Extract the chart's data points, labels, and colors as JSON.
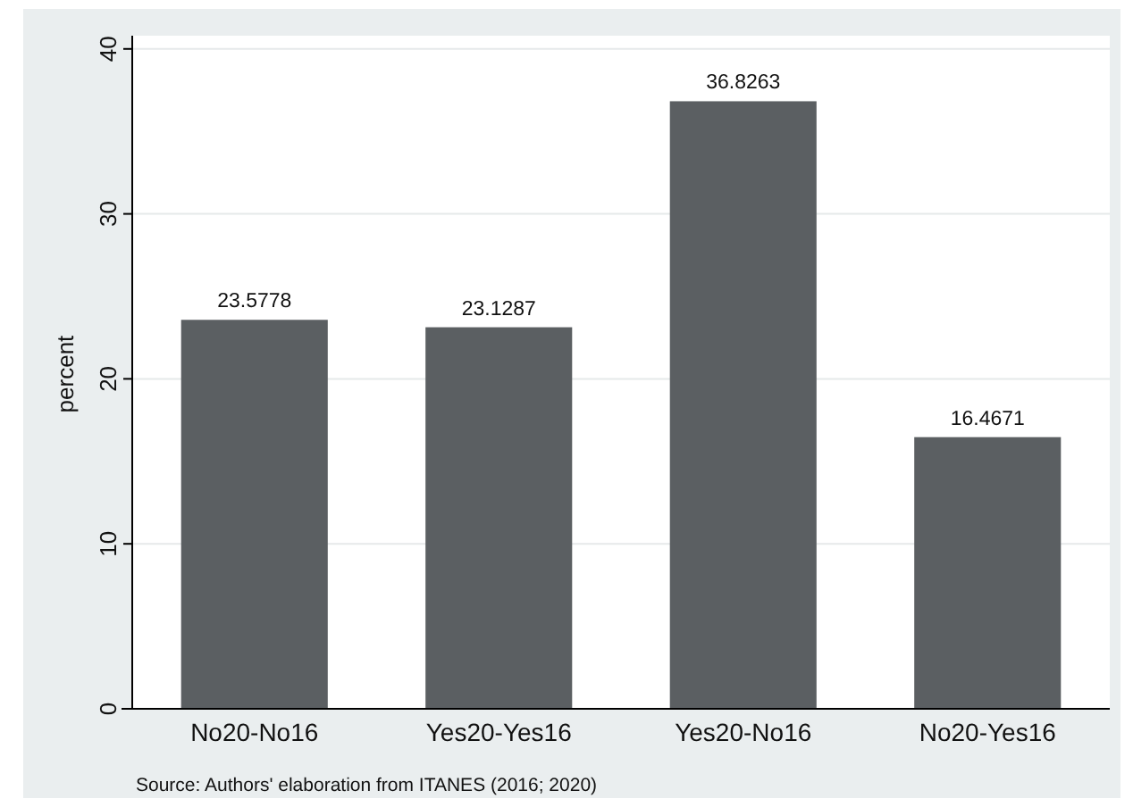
{
  "chart_data": {
    "type": "bar",
    "ylabel": "percent",
    "categories": [
      "No20-No16",
      "Yes20-Yes16",
      "Yes20-No16",
      "No20-Yes16"
    ],
    "values": [
      23.5778,
      23.1287,
      36.8263,
      16.4671
    ],
    "color": "#5b5f62",
    "ylim": [
      0,
      40.8
    ],
    "yticks": [
      0,
      10,
      20,
      30,
      40
    ],
    "grid": "y",
    "data_labels": true,
    "annotations": [
      "Source: Authors' elaboration from ITANES (2016; 2020)"
    ]
  }
}
